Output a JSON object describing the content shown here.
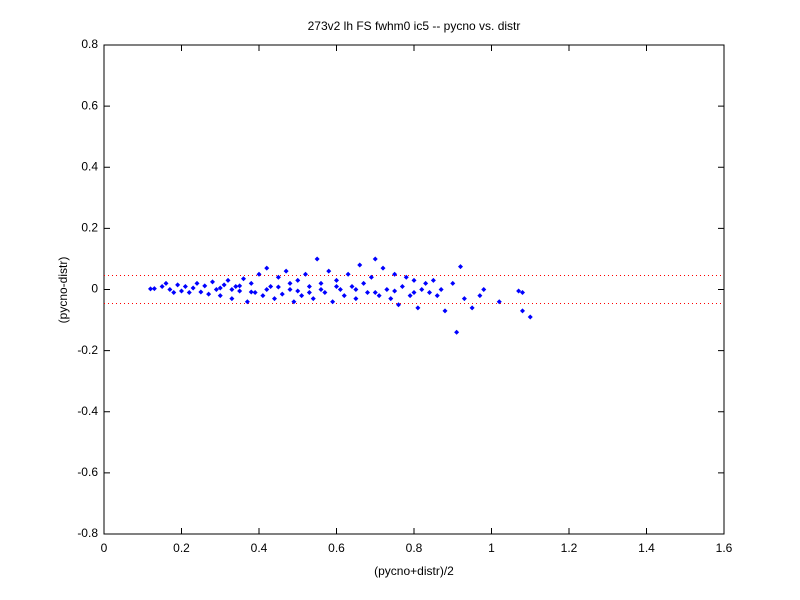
{
  "chart_data": {
    "type": "scatter",
    "title": "273v2 lh FS fwhm0 ic5 -- pycno vs. distr",
    "x_label": "(pycno+distr)/2",
    "y_label": "(pycno-distr)",
    "color": "#0000ff",
    "xlim": [
      0,
      1.6
    ],
    "xticks": [
      0,
      0.2,
      0.4,
      0.6,
      0.8,
      1,
      1.2,
      1.4,
      1.6
    ],
    "ylim": [
      -0.8,
      0.8
    ],
    "yticks": [
      -0.8,
      -0.6,
      -0.4,
      -0.2,
      0,
      0.2,
      0.4,
      0.6,
      0.8
    ],
    "reference_lines": [
      0.046,
      -0.046
    ],
    "reference_color": "#ff0000",
    "x": [
      0.12,
      0.13,
      0.15,
      0.16,
      0.17,
      0.18,
      0.19,
      0.2,
      0.21,
      0.22,
      0.23,
      0.24,
      0.25,
      0.26,
      0.27,
      0.28,
      0.29,
      0.3,
      0.31,
      0.32,
      0.33,
      0.34,
      0.35,
      0.36,
      0.37,
      0.38,
      0.39,
      0.4,
      0.41,
      0.42,
      0.43,
      0.44,
      0.45,
      0.46,
      0.47,
      0.48,
      0.49,
      0.5,
      0.51,
      0.52,
      0.53,
      0.54,
      0.55,
      0.56,
      0.57,
      0.58,
      0.59,
      0.6,
      0.61,
      0.62,
      0.63,
      0.64,
      0.65,
      0.66,
      0.67,
      0.68,
      0.69,
      0.7,
      0.71,
      0.72,
      0.73,
      0.74,
      0.75,
      0.76,
      0.77,
      0.78,
      0.79,
      0.8,
      0.81,
      0.82,
      0.83,
      0.84,
      0.85,
      0.86,
      0.87,
      0.88,
      0.9,
      0.91,
      0.92,
      0.93,
      0.95,
      0.97,
      0.98,
      1.02,
      1.07,
      1.08,
      1.08,
      1.1,
      0.3,
      0.33,
      0.35,
      0.38,
      0.42,
      0.45,
      0.48,
      0.5,
      0.53,
      0.56,
      0.6,
      0.65,
      0.7,
      0.75,
      0.8
    ],
    "y": [
      0.002,
      0.003,
      0.01,
      0.02,
      0.0,
      -0.01,
      0.015,
      -0.005,
      0.01,
      -0.01,
      0.005,
      0.02,
      -0.008,
      0.012,
      -0.015,
      0.025,
      0.0,
      -0.02,
      0.015,
      0.03,
      -0.03,
      0.01,
      -0.005,
      0.035,
      -0.04,
      0.02,
      -0.01,
      0.05,
      -0.02,
      0.07,
      0.01,
      -0.03,
      0.04,
      -0.015,
      0.06,
      0.0,
      -0.04,
      0.03,
      -0.02,
      0.05,
      0.01,
      -0.03,
      0.1,
      0.02,
      -0.01,
      0.06,
      -0.04,
      0.03,
      0.0,
      -0.02,
      0.05,
      0.01,
      -0.03,
      0.08,
      0.02,
      -0.01,
      0.04,
      0.1,
      -0.02,
      0.07,
      0.0,
      -0.03,
      0.05,
      -0.05,
      0.01,
      0.04,
      -0.02,
      0.03,
      -0.06,
      0.0,
      0.02,
      -0.01,
      0.03,
      -0.02,
      0.0,
      -0.07,
      0.02,
      -0.14,
      0.075,
      -0.03,
      -0.06,
      -0.02,
      0.0,
      -0.04,
      -0.005,
      -0.01,
      -0.07,
      -0.09,
      0.005,
      0.0,
      0.012,
      -0.008,
      0.0,
      0.008,
      0.02,
      -0.005,
      -0.01,
      0.0,
      0.01,
      0.0,
      -0.01,
      -0.005,
      -0.01
    ]
  }
}
